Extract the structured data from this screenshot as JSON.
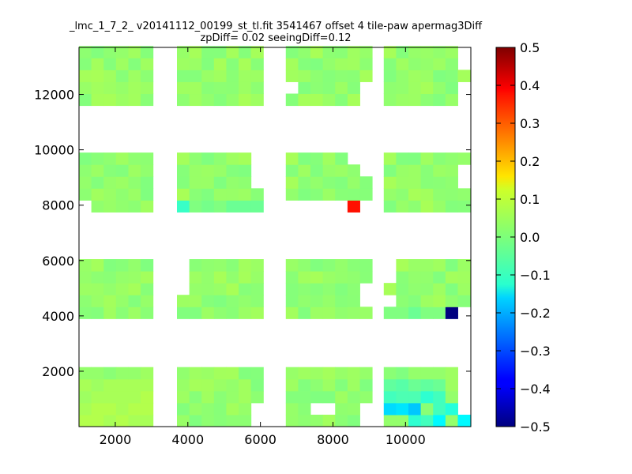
{
  "chart_data": {
    "type": "heatmap",
    "title_line1": "_lmc_1_7_2_ v20141112_00199_st_tl.fit 3541467 offset 4 tile-paw apermag3Diff",
    "title_line2": "zpDiff= 0.02 seeingDiff=0.12",
    "xlim": [
      1000,
      11800
    ],
    "ylim": [
      0,
      13700
    ],
    "xticks": [
      2000,
      4000,
      6000,
      8000,
      10000
    ],
    "yticks": [
      2000,
      4000,
      6000,
      8000,
      10000,
      12000
    ],
    "colorbar": {
      "min": -0.5,
      "max": 0.5,
      "ticks": [
        0.5,
        0.4,
        0.3,
        0.2,
        0.1,
        0.0,
        -0.1,
        -0.2,
        -0.3,
        -0.4,
        -0.5
      ],
      "tick_labels": [
        "0.5",
        "0.4",
        "0.3",
        "0.2",
        "0.1",
        "0.0",
        "−0.1",
        "−0.2",
        "−0.3",
        "−0.4",
        "−0.5"
      ],
      "colormap": "jet"
    },
    "cell_size": [
      340,
      430
    ],
    "column_groups": [
      {
        "x_start": 1000,
        "ncols": 6
      },
      {
        "x_start": 3700,
        "ncols": 7
      },
      {
        "x_start": 6700,
        "ncols": 7
      },
      {
        "x_start": 9400,
        "ncols": 7
      }
    ],
    "row_groups": [
      {
        "y_start": 0,
        "nrows": 5
      },
      {
        "y_start": 3900,
        "nrows": 5
      },
      {
        "y_start": 7750,
        "nrows": 5
      },
      {
        "y_start": 11600,
        "nrows": 5
      }
    ],
    "base_value": 0.02,
    "cells": [
      {
        "group_col": 0,
        "group_row": 0,
        "values": [
          [
            0.05,
            0.05,
            0.04,
            0.05,
            0.04,
            0.04
          ],
          [
            0.04,
            0.05,
            0.05,
            0.04,
            0.05,
            0.05
          ],
          [
            0.03,
            0.04,
            0.04,
            0.04,
            0.04,
            0.05
          ],
          [
            0.04,
            0.03,
            0.04,
            0.04,
            0.04,
            0.04
          ],
          [
            0.02,
            0.02,
            0.01,
            0.02,
            0.02,
            0.03
          ]
        ]
      },
      {
        "group_col": 3,
        "group_row": 0,
        "values": [
          [
            0.02,
            0.02,
            -0.08,
            -0.06,
            -0.13,
            0.02,
            -0.13
          ],
          [
            -0.16,
            -0.15,
            -0.18,
            0.01,
            -0.06,
            -0.09,
            null
          ],
          [
            -0.06,
            -0.05,
            -0.05,
            -0.08,
            -0.06,
            0.02,
            null
          ],
          [
            -0.03,
            -0.04,
            -0.02,
            -0.03,
            -0.02,
            0.03,
            null
          ],
          [
            0.01,
            0.0,
            0.02,
            0.02,
            0.02,
            0.03,
            null
          ]
        ]
      },
      {
        "group_col": 3,
        "group_row": 1,
        "values": [
          [
            0.0,
            0.0,
            -0.02,
            0.0,
            0.0,
            -0.5,
            null
          ]
        ]
      },
      {
        "group_col": 2,
        "group_row": 2,
        "values": [
          [
            null,
            null,
            null,
            null,
            null,
            0.36,
            null
          ]
        ]
      },
      {
        "group_col": 1,
        "group_row": 2,
        "values": [
          [
            -0.07,
            0.0,
            -0.01,
            0.0,
            -0.02,
            -0.02,
            -0.02
          ]
        ]
      }
    ]
  }
}
